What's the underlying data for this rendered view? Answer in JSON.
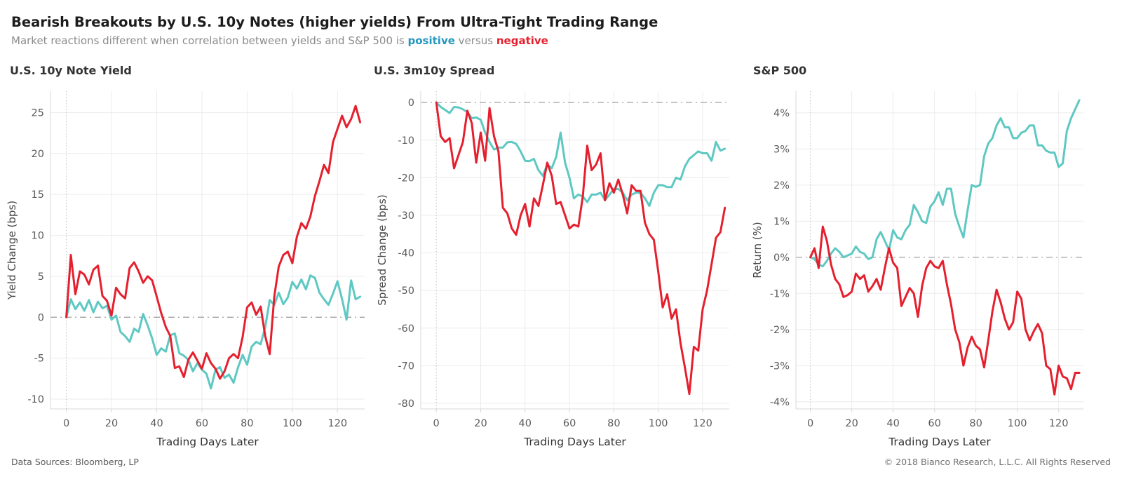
{
  "header": {
    "title": "Bearish Breakouts by U.S. 10y Notes (higher yields) From Ultra-Tight Trading Range",
    "subtitle_prefix": "Market reactions different when correlation between yields and S&P 500 is ",
    "subtitle_positive": "positive",
    "subtitle_versus": " versus ",
    "subtitle_negative": "negative"
  },
  "footer": {
    "left": "Data Sources: Bloomberg, LP",
    "right": "© 2018 Bianco Research, L.L.C. All Rights Reserved"
  },
  "palette": {
    "line_positive": "#5ec8c3",
    "line_negative": "#e5202e",
    "subtitle_positive_text": "#2596be",
    "subtitle_negative_text": "#e5202e",
    "zero_line": "#9a9a9a",
    "gridline": "#ececec",
    "origin_dotted": "#bdbdbd",
    "axis_line": "#d8d8d8",
    "tick_label": "#5c5c5c",
    "axis_title": "#454545",
    "x_axis_title": "#333333"
  },
  "chart_data": [
    {
      "type": "line",
      "title": "U.S. 10y Note Yield",
      "xlabel": "Trading Days Later",
      "ylabel": "Yield Change (bps)",
      "xlim": [
        -7,
        132
      ],
      "ylim": [
        -11.2,
        27.6
      ],
      "xticks": [
        0,
        20,
        40,
        60,
        80,
        100,
        120
      ],
      "yticks": [
        25,
        20,
        15,
        10,
        5,
        0,
        -5,
        -10
      ],
      "ytick_labels": [
        "25",
        "20",
        "15",
        "10",
        "5",
        "0",
        "-5",
        "-10"
      ],
      "grid": true,
      "zero_line_dashed": true,
      "origin_vertical_dotted": true,
      "legend": "none",
      "x_days": [
        0,
        2,
        4,
        6,
        8,
        10,
        12,
        14,
        16,
        18,
        20,
        22,
        24,
        26,
        28,
        30,
        32,
        34,
        36,
        38,
        40,
        42,
        44,
        46,
        48,
        50,
        52,
        54,
        56,
        58,
        60,
        62,
        64,
        66,
        68,
        70,
        72,
        74,
        76,
        78,
        80,
        82,
        84,
        86,
        88,
        90,
        92,
        94,
        96,
        98,
        100,
        102,
        104,
        106,
        108,
        110,
        112,
        114,
        116,
        118,
        120,
        122,
        124,
        126,
        128,
        130
      ],
      "series": [
        {
          "name": "positive correlation",
          "color": "#5ec8c3",
          "values": [
            0,
            2.2,
            1.0,
            1.8,
            0.8,
            2.1,
            0.6,
            1.9,
            1.1,
            1.4,
            -0.3,
            0.2,
            -1.8,
            -2.3,
            -3.0,
            -1.4,
            -1.8,
            0.4,
            -1.0,
            -2.6,
            -4.6,
            -3.8,
            -4.2,
            -2.2,
            -2.0,
            -4.4,
            -4.7,
            -5.2,
            -6.6,
            -5.6,
            -6.4,
            -6.9,
            -8.7,
            -6.4,
            -6.1,
            -7.4,
            -7.0,
            -8.0,
            -6.1,
            -4.6,
            -5.8,
            -3.6,
            -3.0,
            -3.3,
            -1.2,
            2.1,
            1.5,
            3.0,
            1.6,
            2.4,
            4.3,
            3.5,
            4.6,
            3.4,
            5.1,
            4.8,
            3.0,
            2.2,
            1.5,
            2.9,
            4.4,
            2.2,
            -0.3,
            4.5,
            2.2,
            2.5
          ]
        },
        {
          "name": "negative correlation",
          "color": "#e5202e",
          "values": [
            0,
            7.6,
            2.8,
            5.6,
            5.2,
            4.0,
            5.8,
            6.3,
            2.6,
            2.0,
            0.2,
            3.6,
            2.8,
            2.3,
            6.0,
            6.7,
            5.6,
            4.2,
            5.0,
            4.5,
            2.5,
            0.5,
            -1.2,
            -2.3,
            -6.2,
            -6.0,
            -7.3,
            -5.2,
            -4.3,
            -5.3,
            -6.3,
            -4.4,
            -5.6,
            -6.3,
            -7.5,
            -6.6,
            -5.0,
            -4.5,
            -5.0,
            -2.4,
            1.2,
            1.8,
            0.3,
            1.3,
            -2.3,
            -4.5,
            2.5,
            6.2,
            7.6,
            8.0,
            6.6,
            9.8,
            11.5,
            10.8,
            12.3,
            14.8,
            16.6,
            18.6,
            17.6,
            21.4,
            23.0,
            24.6,
            23.2,
            24.2,
            25.8,
            23.8
          ]
        }
      ]
    },
    {
      "type": "line",
      "title": "U.S. 3m10y Spread",
      "xlabel": "Trading Days Later",
      "ylabel": "Spread Change (bps)",
      "xlim": [
        -7,
        132
      ],
      "ylim": [
        -81.5,
        3
      ],
      "xticks": [
        0,
        20,
        40,
        60,
        80,
        100,
        120
      ],
      "yticks": [
        0,
        -10,
        -20,
        -30,
        -40,
        -50,
        -60,
        -70,
        -80
      ],
      "ytick_labels": [
        "0",
        "-10",
        "-20",
        "-30",
        "-40",
        "-50",
        "-60",
        "-70",
        "-80"
      ],
      "grid": true,
      "zero_line_dashed": true,
      "origin_vertical_dotted": true,
      "legend": "none",
      "x_days": [
        0,
        2,
        4,
        6,
        8,
        10,
        12,
        14,
        16,
        18,
        20,
        22,
        24,
        26,
        28,
        30,
        32,
        34,
        36,
        38,
        40,
        42,
        44,
        46,
        48,
        50,
        52,
        54,
        56,
        58,
        60,
        62,
        64,
        66,
        68,
        70,
        72,
        74,
        76,
        78,
        80,
        82,
        84,
        86,
        88,
        90,
        92,
        94,
        96,
        98,
        100,
        102,
        104,
        106,
        108,
        110,
        112,
        114,
        116,
        118,
        120,
        122,
        124,
        126,
        128,
        130
      ],
      "series": [
        {
          "name": "positive correlation",
          "color": "#5ec8c3",
          "values": [
            0,
            -1.2,
            -2.0,
            -2.8,
            -1.2,
            -1.3,
            -1.8,
            -2.6,
            -4.2,
            -4.0,
            -4.6,
            -8.0,
            -10.5,
            -12.5,
            -12.0,
            -12.0,
            -10.6,
            -10.5,
            -11.0,
            -13.0,
            -15.5,
            -15.6,
            -15.0,
            -18.0,
            -19.5,
            -16.5,
            -17.5,
            -14.5,
            -8.0,
            -16.0,
            -20.0,
            -25.5,
            -24.5,
            -25.0,
            -26.5,
            -24.5,
            -24.5,
            -24.0,
            -26.0,
            -24.5,
            -23.0,
            -23.0,
            -24.0,
            -26.0,
            -24.5,
            -24.0,
            -24.0,
            -25.5,
            -27.5,
            -24.0,
            -22.0,
            -22.0,
            -22.5,
            -22.5,
            -20.0,
            -20.5,
            -17.0,
            -15.0,
            -14.0,
            -13.0,
            -13.5,
            -13.5,
            -15.5,
            -10.5,
            -12.8,
            -12.3
          ]
        },
        {
          "name": "negative correlation",
          "color": "#e5202e",
          "values": [
            0,
            -9.0,
            -10.5,
            -9.5,
            -17.5,
            -14.0,
            -10.5,
            -2.2,
            -5.5,
            -16.0,
            -8.0,
            -15.5,
            -1.5,
            -9.0,
            -13.0,
            -28.0,
            -29.5,
            -33.5,
            -35.2,
            -30.0,
            -27.0,
            -33.0,
            -25.5,
            -27.5,
            -22.0,
            -16.0,
            -19.5,
            -27.0,
            -26.5,
            -30.0,
            -33.5,
            -32.5,
            -33.0,
            -25.0,
            -11.5,
            -18.0,
            -16.5,
            -13.5,
            -26.0,
            -21.5,
            -24.0,
            -20.5,
            -24.5,
            -29.5,
            -22.0,
            -23.5,
            -23.5,
            -32.0,
            -35.0,
            -36.5,
            -45.0,
            -54.5,
            -51.0,
            -57.5,
            -55.0,
            -64.0,
            -70.5,
            -77.5,
            -65.0,
            -66.0,
            -55.0,
            -50.0,
            -43.0,
            -36.0,
            -34.5,
            -28.0
          ]
        }
      ]
    },
    {
      "type": "line",
      "title": "S&P 500",
      "xlabel": "Trading Days Later",
      "ylabel": "Return (%)",
      "xlim": [
        -7,
        132
      ],
      "ylim": [
        -4.2,
        4.6
      ],
      "xticks": [
        0,
        20,
        40,
        60,
        80,
        100,
        120
      ],
      "yticks": [
        4,
        3,
        2,
        1,
        0,
        -1,
        -2,
        -3,
        -4
      ],
      "ytick_labels": [
        "4%",
        "3%",
        "2%",
        "1%",
        "0%",
        "-1%",
        "-2%",
        "-3%",
        "-4%"
      ],
      "grid": true,
      "zero_line_dashed": true,
      "origin_vertical_dotted": true,
      "legend": "none",
      "x_days": [
        0,
        2,
        4,
        6,
        8,
        10,
        12,
        14,
        16,
        18,
        20,
        22,
        24,
        26,
        28,
        30,
        32,
        34,
        36,
        38,
        40,
        42,
        44,
        46,
        48,
        50,
        52,
        54,
        56,
        58,
        60,
        62,
        64,
        66,
        68,
        70,
        72,
        74,
        76,
        78,
        80,
        82,
        84,
        86,
        88,
        90,
        92,
        94,
        96,
        98,
        100,
        102,
        104,
        106,
        108,
        110,
        112,
        114,
        116,
        118,
        120,
        122,
        124,
        126,
        128,
        130
      ],
      "series": [
        {
          "name": "positive correlation",
          "color": "#5ec8c3",
          "values": [
            0,
            -0.05,
            -0.2,
            -0.25,
            -0.1,
            0.1,
            0.25,
            0.15,
            0.0,
            0.05,
            0.1,
            0.3,
            0.15,
            0.1,
            -0.05,
            0.0,
            0.5,
            0.7,
            0.45,
            0.2,
            0.75,
            0.55,
            0.5,
            0.75,
            0.9,
            1.45,
            1.25,
            1.0,
            0.95,
            1.4,
            1.55,
            1.8,
            1.45,
            1.9,
            1.9,
            1.2,
            0.85,
            0.55,
            1.3,
            2.0,
            1.95,
            2.0,
            2.8,
            3.15,
            3.3,
            3.65,
            3.85,
            3.6,
            3.6,
            3.3,
            3.3,
            3.45,
            3.5,
            3.65,
            3.65,
            3.1,
            3.1,
            2.95,
            2.9,
            2.9,
            2.5,
            2.6,
            3.5,
            3.85,
            4.1,
            4.35
          ]
        },
        {
          "name": "negative correlation",
          "color": "#e5202e",
          "values": [
            0,
            0.25,
            -0.3,
            0.85,
            0.45,
            -0.2,
            -0.6,
            -0.75,
            -1.1,
            -1.05,
            -0.95,
            -0.45,
            -0.6,
            -0.5,
            -0.95,
            -0.8,
            -0.6,
            -0.9,
            -0.3,
            0.25,
            -0.15,
            -0.3,
            -1.35,
            -1.1,
            -0.85,
            -1.0,
            -1.65,
            -0.8,
            -0.3,
            -0.1,
            -0.25,
            -0.3,
            -0.1,
            -0.75,
            -1.3,
            -2.0,
            -2.35,
            -3.0,
            -2.5,
            -2.2,
            -2.45,
            -2.55,
            -3.05,
            -2.3,
            -1.5,
            -0.9,
            -1.25,
            -1.7,
            -2.0,
            -1.8,
            -0.95,
            -1.15,
            -2.0,
            -2.3,
            -2.05,
            -1.85,
            -2.1,
            -3.0,
            -3.1,
            -3.8,
            -3.0,
            -3.3,
            -3.35,
            -3.65,
            -3.2,
            -3.2
          ]
        }
      ]
    }
  ]
}
